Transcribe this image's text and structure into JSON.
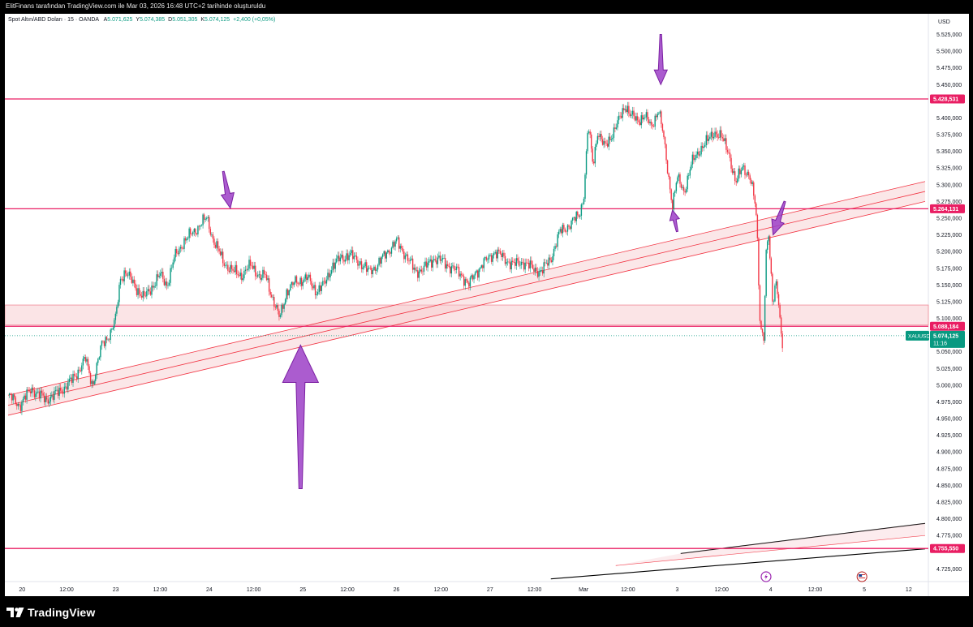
{
  "header": {
    "caption": "ElitFinans tarafından TradingView.com ile Mar 03, 2026 16:48 UTC+2 tarihinde oluşturuldu"
  },
  "legend": {
    "symbol": "Spot Altın/ABD Doları · 15 · OANDA",
    "open_label": "A",
    "open": "5.071,625",
    "high_label": "Y",
    "high": "5.074,385",
    "low_label": "D",
    "low": "5.051,305",
    "close_label": "K",
    "close": "5.074,125",
    "change": "+2,400 (+0,05%)"
  },
  "brand": {
    "name": "TradingView"
  },
  "colors": {
    "up": "#089981",
    "down": "#f23645",
    "level": "#e91e63",
    "zone_fill": "#f7c9cd",
    "arrow": "#9c40c7",
    "axis_text": "#131722"
  },
  "chart_data": {
    "type": "candlestick",
    "title": "Spot Altın/ABD Doları · 15 · OANDA",
    "currency": "USD",
    "ylim": [
      4710,
      5560
    ],
    "y_ticks": [
      "5.525,000",
      "5.500,000",
      "5.475,000",
      "5.450,000",
      "5.400,000",
      "5.375,000",
      "5.350,000",
      "5.325,000",
      "5.300,000",
      "5.275,000",
      "5.250,000",
      "5.225,000",
      "5.200,000",
      "5.175,000",
      "5.150,000",
      "5.125,000",
      "5.100,000",
      "5.050,000",
      "5.025,000",
      "5.000,000",
      "4.975,000",
      "4.950,000",
      "4.925,000",
      "4.900,000",
      "4.875,000",
      "4.850,000",
      "4.825,000",
      "4.800,000",
      "4.775,000",
      "4.725,000"
    ],
    "x_ticks": [
      "20",
      "12:00",
      "23",
      "12:00",
      "24",
      "12:00",
      "25",
      "12:00",
      "26",
      "12:00",
      "27",
      "12:00",
      "Mar",
      "12:00",
      "3",
      "12:00",
      "4",
      "12:00",
      "5",
      "12"
    ],
    "x_tick_index": [
      0.6,
      2.5,
      4.6,
      6.5,
      8.6,
      10.5,
      12.6,
      14.5,
      16.6,
      18.5,
      20.6,
      22.5,
      24.6,
      26.5,
      28.6,
      30.5,
      32.6,
      34.5,
      36.6,
      38.5
    ],
    "price_path": [
      [
        0,
        4985
      ],
      [
        0.5,
        4970
      ],
      [
        1,
        4995
      ],
      [
        1.6,
        4978
      ],
      [
        2.2,
        4990
      ],
      [
        2.8,
        5010
      ],
      [
        3.3,
        5040
      ],
      [
        3.6,
        5000
      ],
      [
        4,
        5060
      ],
      [
        4.4,
        5080
      ],
      [
        4.6,
        5100
      ],
      [
        4.8,
        5160
      ],
      [
        5,
        5170
      ],
      [
        5.4,
        5150
      ],
      [
        5.8,
        5130
      ],
      [
        6.2,
        5150
      ],
      [
        6.5,
        5165
      ],
      [
        6.8,
        5150
      ],
      [
        7.1,
        5190
      ],
      [
        7.5,
        5215
      ],
      [
        7.8,
        5225
      ],
      [
        8.2,
        5240
      ],
      [
        8.5,
        5250
      ],
      [
        8.8,
        5215
      ],
      [
        9.2,
        5185
      ],
      [
        9.6,
        5170
      ],
      [
        10,
        5165
      ],
      [
        10.4,
        5180
      ],
      [
        10.8,
        5160
      ],
      [
        11,
        5165
      ],
      [
        11.4,
        5120
      ],
      [
        11.6,
        5100
      ],
      [
        11.9,
        5140
      ],
      [
        12.3,
        5155
      ],
      [
        12.8,
        5160
      ],
      [
        13.2,
        5140
      ],
      [
        13.5,
        5150
      ],
      [
        13.8,
        5175
      ],
      [
        14.2,
        5190
      ],
      [
        14.6,
        5195
      ],
      [
        15,
        5185
      ],
      [
        15.4,
        5170
      ],
      [
        15.8,
        5180
      ],
      [
        16.2,
        5200
      ],
      [
        16.6,
        5215
      ],
      [
        17,
        5195
      ],
      [
        17.4,
        5170
      ],
      [
        17.8,
        5175
      ],
      [
        18.2,
        5190
      ],
      [
        18.6,
        5185
      ],
      [
        19,
        5175
      ],
      [
        19.4,
        5165
      ],
      [
        19.7,
        5150
      ],
      [
        20,
        5170
      ],
      [
        20.4,
        5185
      ],
      [
        20.8,
        5200
      ],
      [
        21.2,
        5190
      ],
      [
        21.6,
        5180
      ],
      [
        22,
        5185
      ],
      [
        22.4,
        5175
      ],
      [
        22.8,
        5170
      ],
      [
        23.2,
        5190
      ],
      [
        23.6,
        5230
      ],
      [
        24,
        5240
      ],
      [
        24.4,
        5255
      ],
      [
        24.6,
        5280
      ],
      [
        24.8,
        5390
      ],
      [
        25,
        5330
      ],
      [
        25.2,
        5380
      ],
      [
        25.5,
        5355
      ],
      [
        25.8,
        5375
      ],
      [
        26.1,
        5395
      ],
      [
        26.4,
        5420
      ],
      [
        26.6,
        5405
      ],
      [
        26.9,
        5395
      ],
      [
        27.2,
        5405
      ],
      [
        27.5,
        5385
      ],
      [
        27.8,
        5415
      ],
      [
        28,
        5375
      ],
      [
        28.2,
        5320
      ],
      [
        28.4,
        5270
      ],
      [
        28.6,
        5310
      ],
      [
        28.9,
        5290
      ],
      [
        29.2,
        5330
      ],
      [
        29.6,
        5355
      ],
      [
        29.9,
        5365
      ],
      [
        30.2,
        5380
      ],
      [
        30.5,
        5370
      ],
      [
        30.8,
        5350
      ],
      [
        31.1,
        5300
      ],
      [
        31.4,
        5330
      ],
      [
        31.7,
        5310
      ],
      [
        31.9,
        5280
      ],
      [
        32,
        5250
      ],
      [
        32.15,
        5090
      ],
      [
        32.3,
        5070
      ],
      [
        32.4,
        5190
      ],
      [
        32.5,
        5230
      ],
      [
        32.6,
        5170
      ],
      [
        32.7,
        5120
      ],
      [
        32.8,
        5160
      ],
      [
        32.9,
        5140
      ],
      [
        33,
        5090
      ],
      [
        33.1,
        5055
      ]
    ],
    "x_max": 39.2,
    "horizontal_levels": [
      {
        "value": 5428.531,
        "label": "5.428,531"
      },
      {
        "value": 5264.131,
        "label": "5.264,131"
      },
      {
        "value": 5088.184,
        "label": "5.088,184"
      },
      {
        "value": 4755.55,
        "label": "4.755,550"
      }
    ],
    "support_zone": [
      5090,
      5120
    ],
    "current_price": {
      "symbol": "XAUUSD",
      "value": 5074.125,
      "label": "5.074,125",
      "countdown": "11:16"
    },
    "trend_channel": {
      "start": [
        0,
        4970
      ],
      "end": [
        39.2,
        5290
      ],
      "half_width": 15
    },
    "lower_channel": {
      "start": [
        23.2,
        4710
      ],
      "end": [
        39.2,
        4755
      ],
      "offsets": [
        0,
        20,
        38
      ]
    },
    "arrows": [
      {
        "from": [
          9.2,
          5320
        ],
        "to": [
          9.5,
          5265
        ],
        "size": "small"
      },
      {
        "from": [
          27.9,
          5525
        ],
        "to": [
          27.9,
          5450
        ],
        "size": "small"
      },
      {
        "from": [
          28.6,
          5230
        ],
        "to": [
          28.4,
          5262
        ],
        "size": "tiny"
      },
      {
        "from": [
          33.2,
          5275
        ],
        "to": [
          32.7,
          5225
        ],
        "size": "small"
      },
      {
        "from": [
          12.5,
          4845
        ],
        "to": [
          12.5,
          5060
        ],
        "size": "large"
      }
    ],
    "event_markers": [
      {
        "x": 32.4,
        "icon": "lightning-icon"
      },
      {
        "x": 36.5,
        "icon": "us-flag-icon"
      }
    ]
  }
}
